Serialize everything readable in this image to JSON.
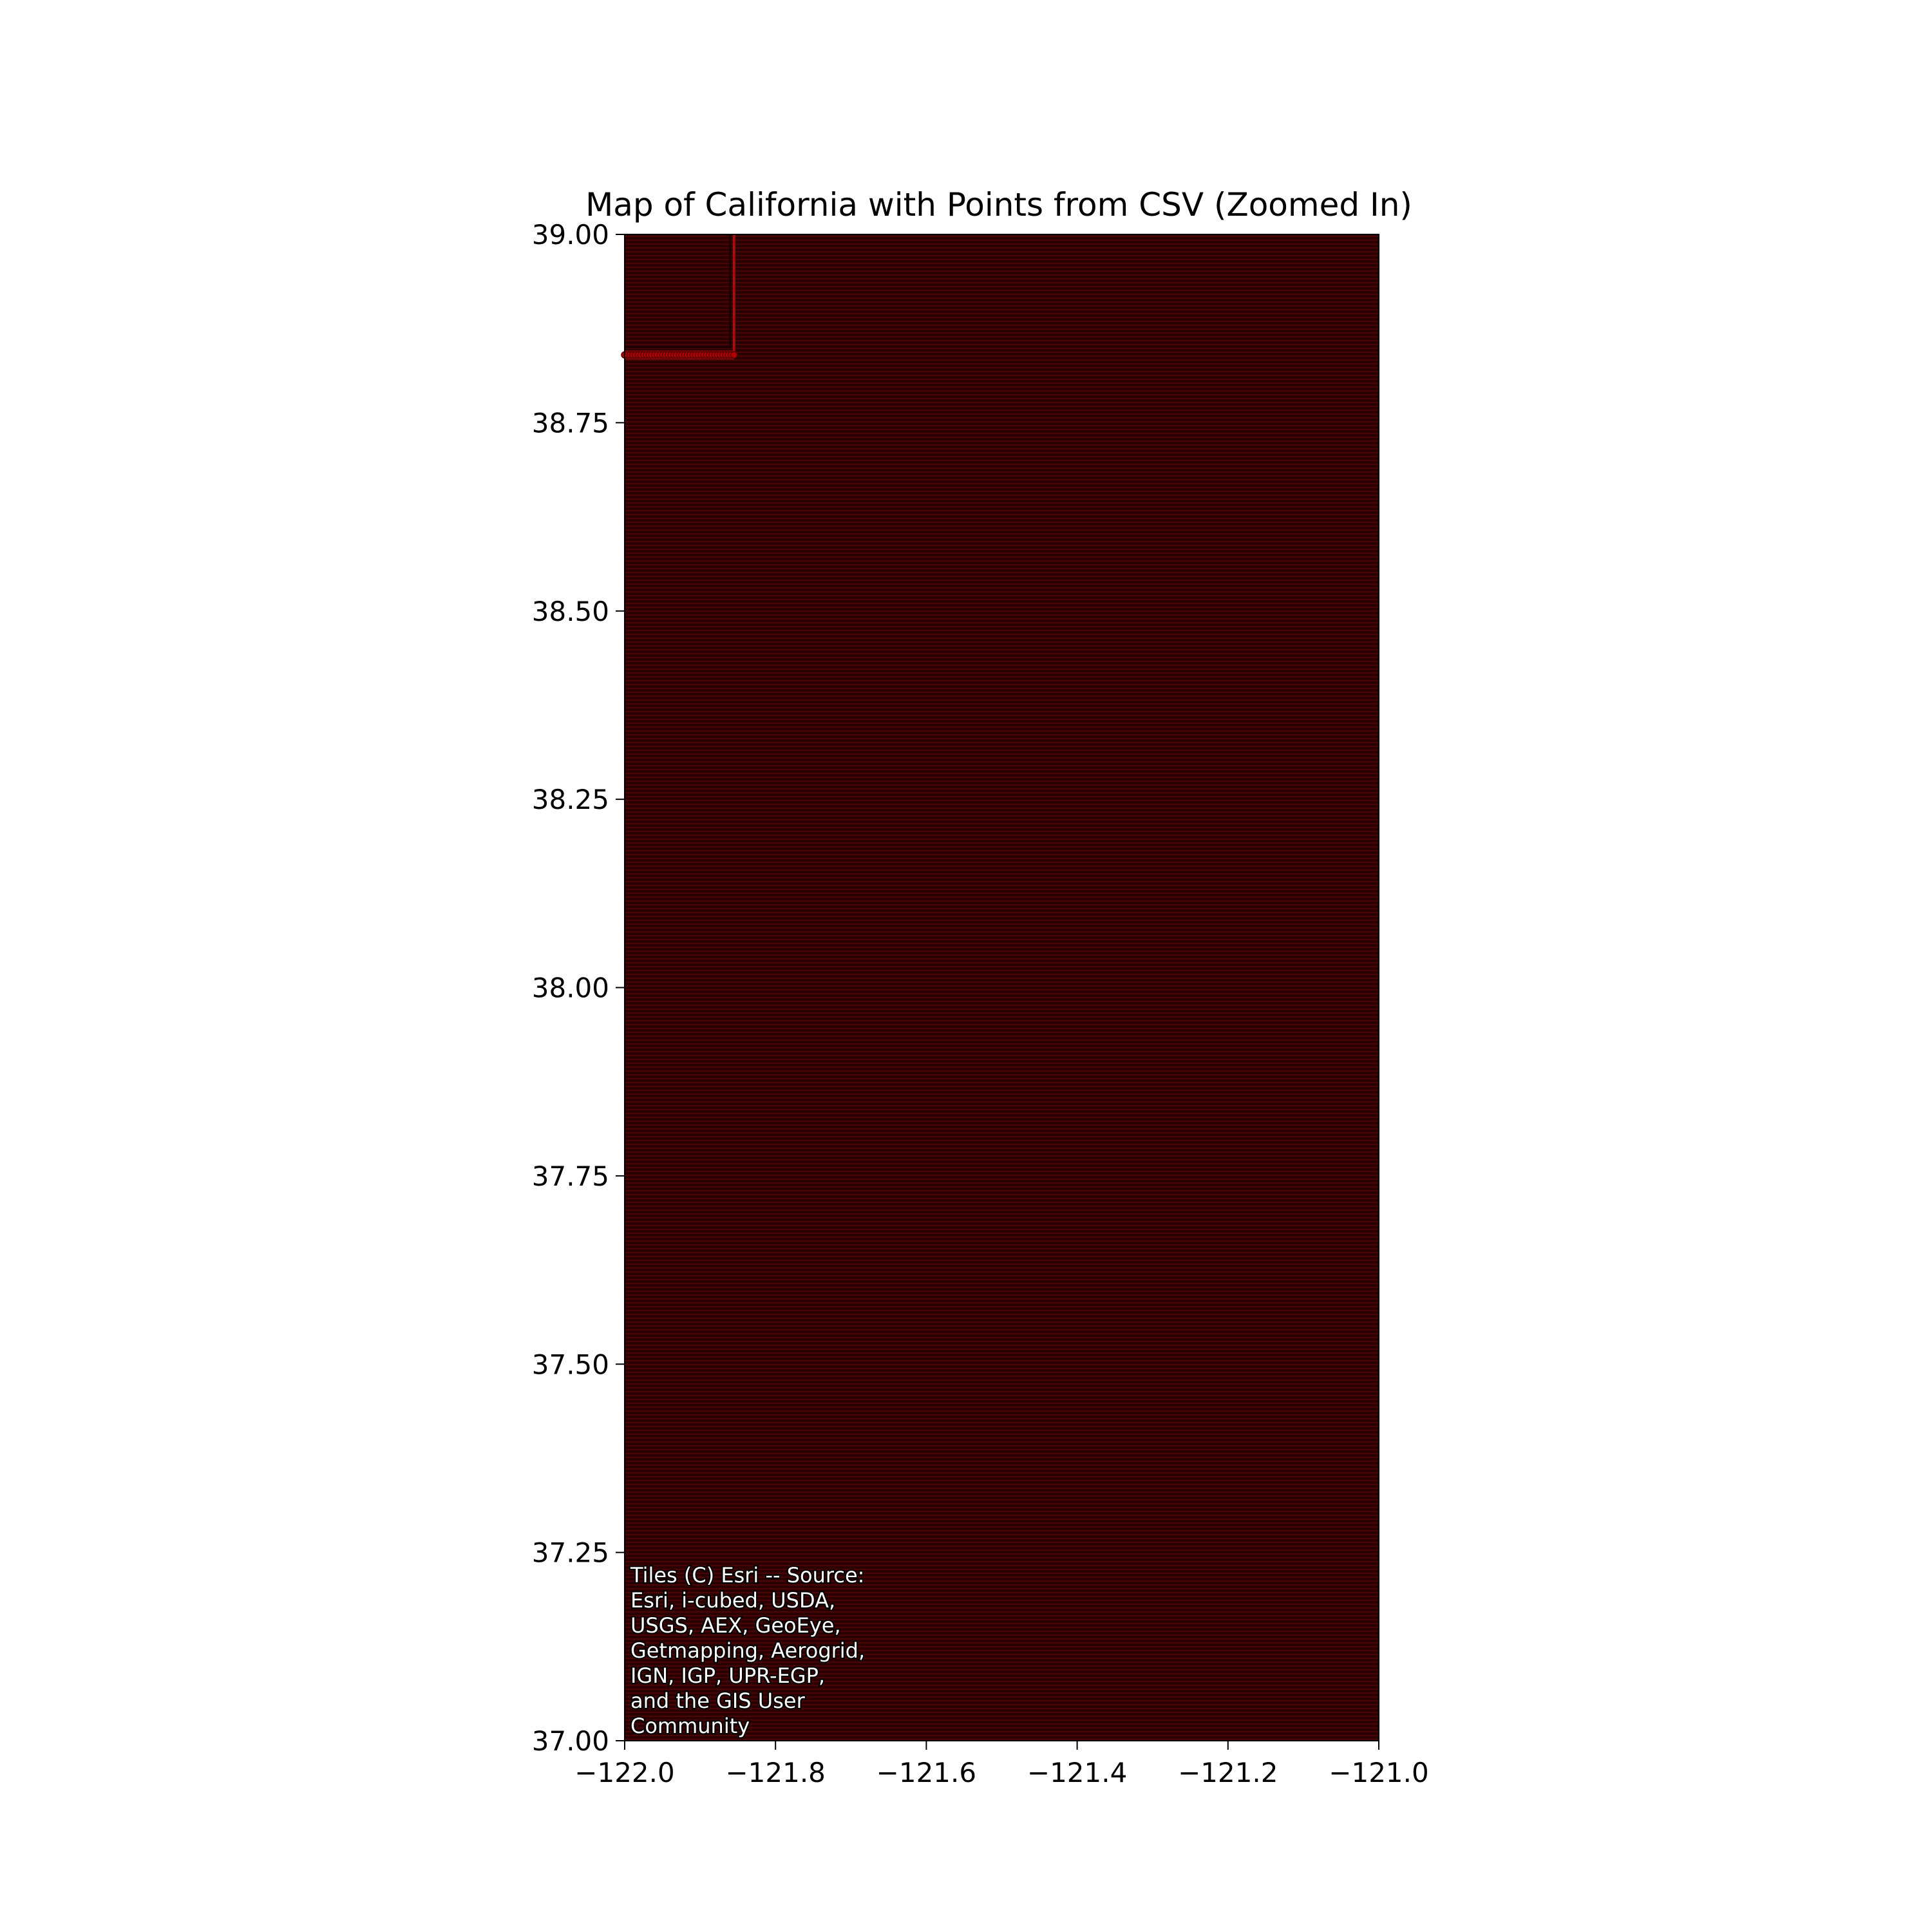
{
  "chart_data": {
    "type": "scatter",
    "title": "Map of California with Points from CSV (Zoomed In)",
    "xlabel": "",
    "ylabel": "",
    "xlim": [
      -122.0,
      -121.0
    ],
    "ylim": [
      37.0,
      39.0
    ],
    "x_ticks": [
      -122.0,
      -121.8,
      -121.6,
      -121.4,
      -121.2,
      -121.0
    ],
    "x_tick_labels": [
      "−122.0",
      "−121.8",
      "−121.6",
      "−121.4",
      "−121.2",
      "−121.0"
    ],
    "y_ticks": [
      37.0,
      37.25,
      37.5,
      37.75,
      38.0,
      38.25,
      38.5,
      38.75,
      39.0
    ],
    "y_tick_labels": [
      "37.00",
      "37.25",
      "37.50",
      "37.75",
      "38.00",
      "38.25",
      "38.50",
      "38.75",
      "39.00"
    ],
    "grid": false,
    "basemap_colors": {
      "background": "#2a0000",
      "row_lines": "#4a0606",
      "highlight_rows": "#8a0a0a",
      "highlight_edge": "#a01010"
    },
    "point_grid": {
      "lon_range": [
        -122.0,
        -121.855
      ],
      "lat_range": [
        38.84,
        39.0
      ],
      "dense_row_lat": 38.84,
      "marker_color": "#b00000"
    },
    "attribution": "Tiles (C) Esri -- Source: Esri, i-cubed, USDA, USGS, AEX, GeoEye, Getmapping, Aerogrid, IGN, IGP, UPR-EGP, and the GIS User Community",
    "attribution_lines": [
      "Tiles (C) Esri -- Source:",
      "Esri, i-cubed, USDA,",
      "USGS, AEX, GeoEye,",
      "Getmapping, Aerogrid,",
      "IGN, IGP, UPR-EGP,",
      "and the GIS User",
      "Community"
    ]
  }
}
